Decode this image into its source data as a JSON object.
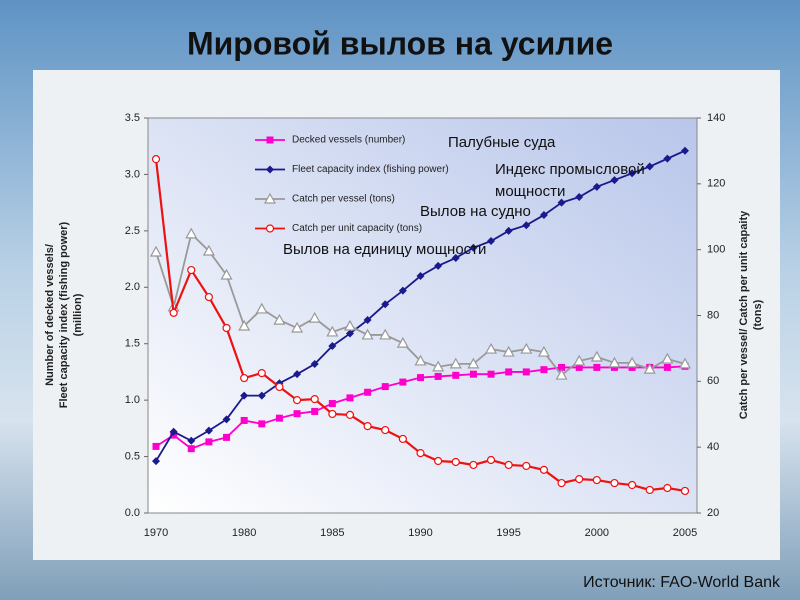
{
  "title": "Мировой вылов на усилие",
  "source": "Источник: FAO-World Bank",
  "chart_data": {
    "type": "line",
    "categories": [
      1970,
      null,
      null,
      null,
      null,
      1980,
      null,
      null,
      null,
      null,
      1985,
      null,
      null,
      null,
      null,
      1990,
      null,
      null,
      null,
      null,
      1995,
      null,
      null,
      null,
      null,
      2000,
      null,
      null,
      null,
      null,
      2005
    ],
    "y_label": [
      "Number of decked vessels/",
      "Fleet capacity index (fishing power)",
      "(million)"
    ],
    "y2_label": [
      "Catch per vessel/ Catch per unit capaity",
      "(tons)"
    ],
    "ylim": [
      0,
      3.5
    ],
    "yticks": [
      {
        "value": 0,
        "label": "0.0"
      },
      0.5,
      {
        "value": 1,
        "label": "1.0"
      },
      1.5,
      {
        "value": 2,
        "label": "2.0"
      },
      2.5,
      {
        "value": 3,
        "label": "3.0"
      },
      3.5
    ],
    "y2lim": [
      20,
      140
    ],
    "y2ticks": [
      20,
      40,
      60,
      80,
      100,
      120,
      140
    ],
    "annotations": [
      "Палубные суда",
      "Индекс промысловой",
      "мощности",
      "Вылов на судно",
      "Вылов на единицу мощности"
    ],
    "series": [
      {
        "name": "Decked vessels (number)",
        "color": "#ff00cc",
        "marker": "square",
        "values": [
          0.59,
          0.69,
          0.57,
          0.63,
          0.67,
          0.82,
          0.79,
          0.84,
          0.88,
          0.9,
          0.97,
          1.02,
          1.07,
          1.12,
          1.16,
          1.2,
          1.21,
          1.22,
          1.23,
          1.23,
          1.25,
          1.25,
          1.27,
          1.29,
          1.29,
          1.29,
          1.29,
          1.29,
          1.29,
          1.29,
          1.3
        ]
      },
      {
        "name": "Fleet capacity index (fishing power)",
        "color": "#1a1a8c",
        "marker": "diamond",
        "values": [
          0.46,
          0.72,
          0.64,
          0.73,
          0.83,
          1.04,
          1.04,
          1.15,
          1.23,
          1.32,
          1.48,
          1.59,
          1.71,
          1.85,
          1.97,
          2.1,
          2.19,
          2.26,
          2.35,
          2.41,
          2.5,
          2.55,
          2.64,
          2.75,
          2.8,
          2.89,
          2.95,
          3.01,
          3.07,
          3.14,
          3.21
        ]
      },
      {
        "name": "Catch per vessel (tons)",
        "color": "#999999",
        "marker": "triangle",
        "axis": "y2",
        "values": [
          99.3,
          82.6,
          104.8,
          99.6,
          92.3,
          76.8,
          82.0,
          78.6,
          76.2,
          79.2,
          75.0,
          76.8,
          74.1,
          74.1,
          71.6,
          66.2,
          64.4,
          65.3,
          65.3,
          69.8,
          68.9,
          69.8,
          68.9,
          61.9,
          66.2,
          67.4,
          65.6,
          65.6,
          63.7,
          66.8,
          65.3
        ]
      },
      {
        "name": "Catch per unit capacity (tons)",
        "color": "#ee1111",
        "marker": "circle",
        "axis": "y2",
        "values": [
          127.5,
          80.8,
          93.8,
          85.6,
          76.2,
          61.0,
          62.5,
          58.3,
          54.3,
          54.6,
          50.1,
          49.8,
          46.4,
          45.2,
          42.5,
          38.2,
          35.8,
          35.5,
          34.6,
          36.1,
          34.6,
          34.3,
          33.1,
          29.1,
          30.3,
          30.0,
          29.1,
          28.5,
          27.0,
          27.6,
          26.7
        ]
      }
    ]
  }
}
